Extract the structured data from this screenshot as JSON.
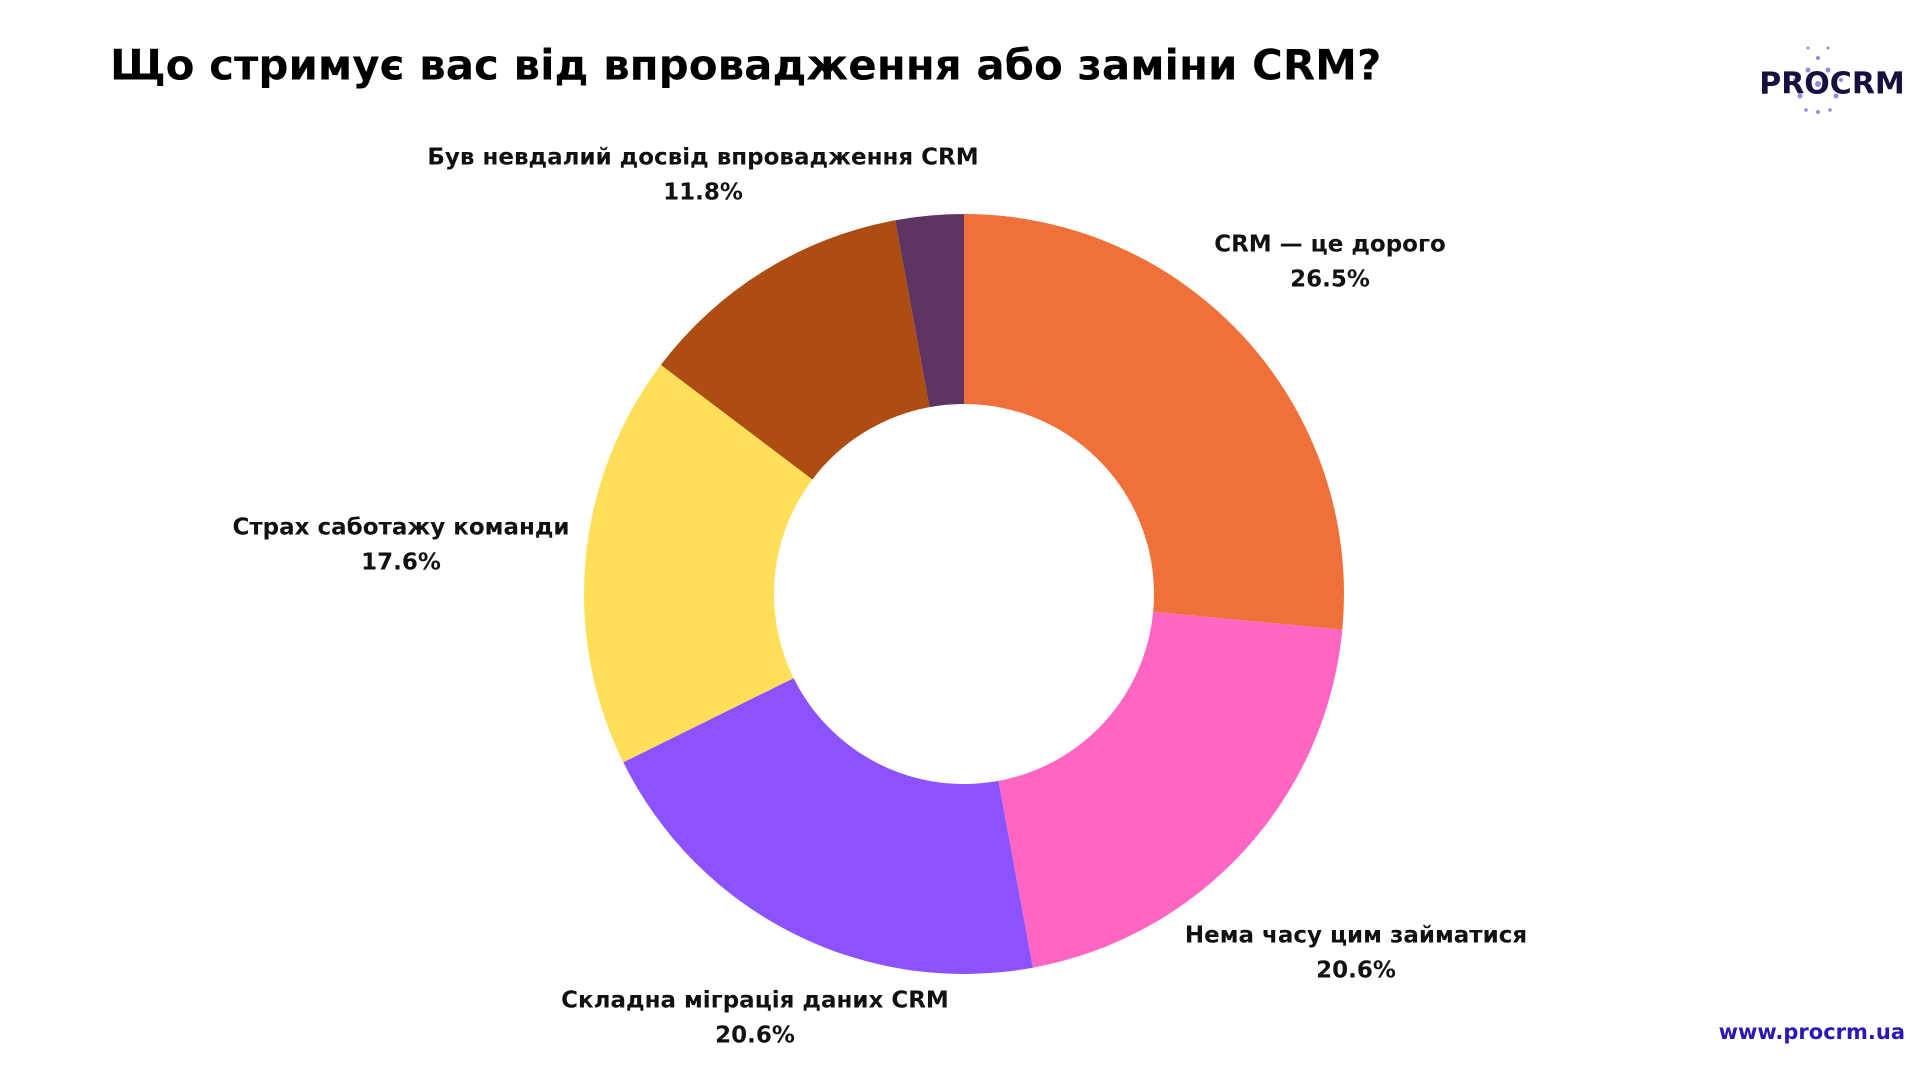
{
  "chart_data": {
    "type": "pie",
    "title": "Що стримує вас від впровадження або заміни CRM?",
    "categories": [
      "CRM — це дорого",
      "Нема часу цим займатися",
      "Складна міграція даних CRM",
      "Страх саботажу команди",
      "Був невдалий досвід впровадження CRM",
      null
    ],
    "values": [
      26.5,
      20.6,
      20.6,
      17.6,
      11.8,
      2.9
    ],
    "value_labels": [
      "26.5%",
      "20.6%",
      "20.6%",
      "17.6%",
      "11.8%",
      null
    ],
    "colors": [
      "#f0703a",
      "#ff66c4",
      "#8c52ff",
      "#ffde59",
      "#ae4d12",
      "#5e3463"
    ],
    "donut": true
  },
  "logo": "PROCRM",
  "website": "www.procrm.ua"
}
